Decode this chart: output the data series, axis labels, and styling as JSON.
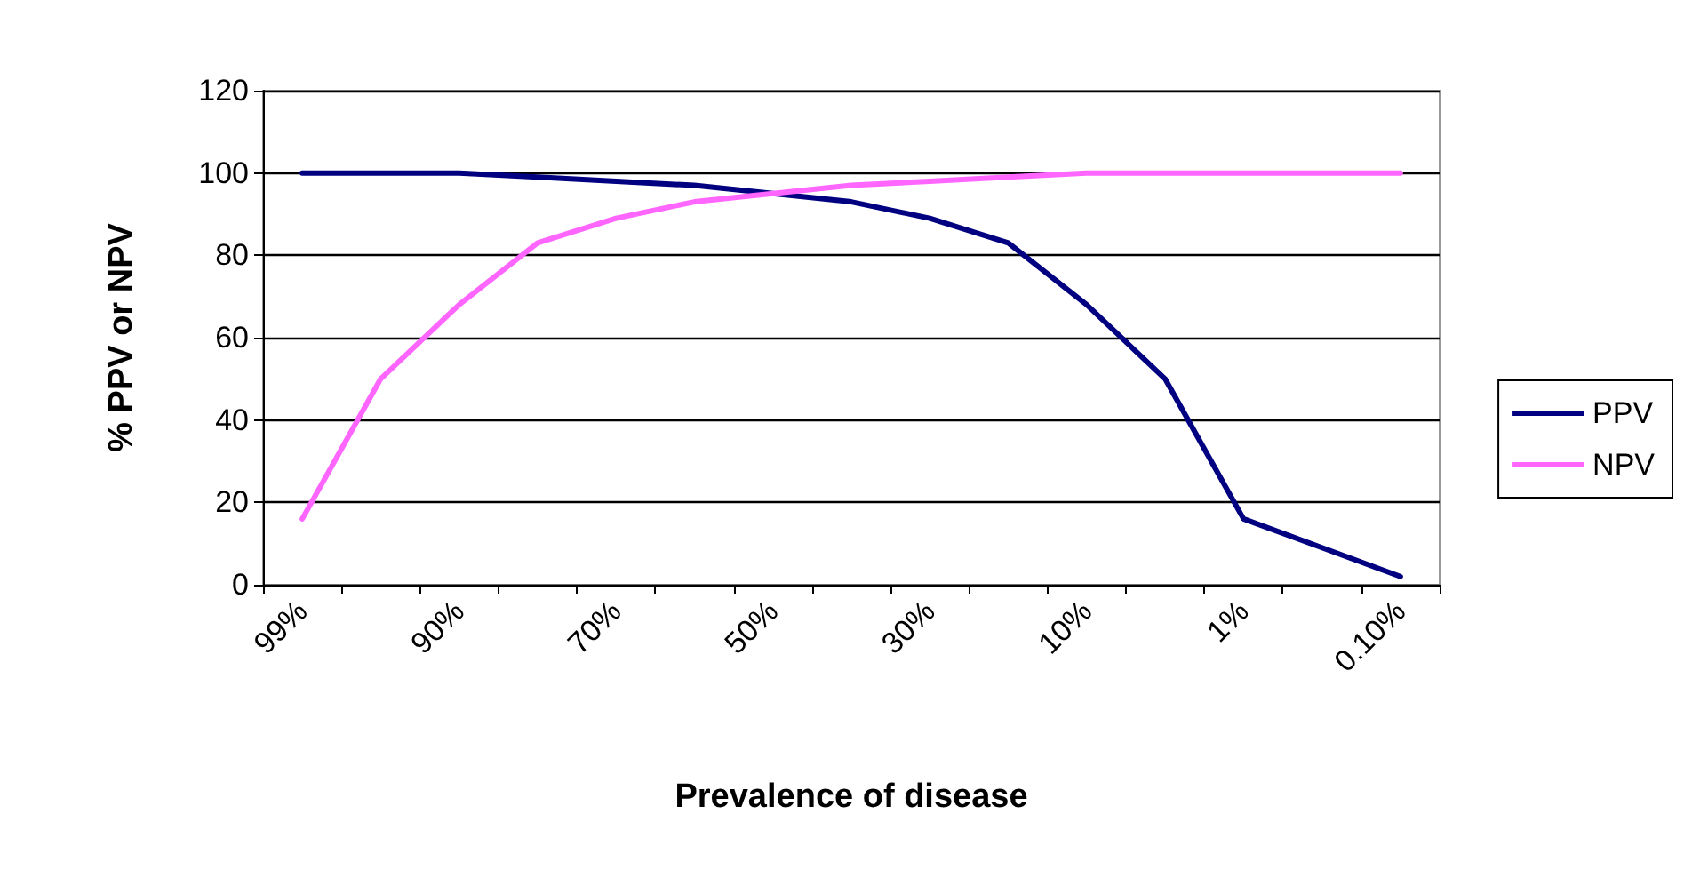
{
  "chart_data": {
    "type": "line",
    "xlabel": "Prevalence of disease",
    "ylabel": "% PPV or NPV",
    "categories": [
      "99%",
      null,
      "90%",
      null,
      "70%",
      null,
      "50%",
      null,
      "30%",
      null,
      "10%",
      null,
      "1%",
      null,
      "0.10%"
    ],
    "series": [
      {
        "name": "PPV",
        "color": "#000080",
        "values": [
          100,
          100,
          100,
          99,
          98,
          97,
          95,
          93,
          89,
          83,
          68,
          50,
          16,
          9,
          2
        ]
      },
      {
        "name": "NPV",
        "color": "#ff66ff",
        "values": [
          16,
          50,
          68,
          83,
          89,
          93,
          95,
          97,
          98,
          99,
          100,
          100,
          100,
          100,
          100
        ]
      }
    ],
    "ylim": [
      0,
      120
    ],
    "yticks": [
      0,
      20,
      40,
      60,
      80,
      100,
      120
    ],
    "grid": "y",
    "legend": "right",
    "marker": "none",
    "line_style": "solid"
  }
}
